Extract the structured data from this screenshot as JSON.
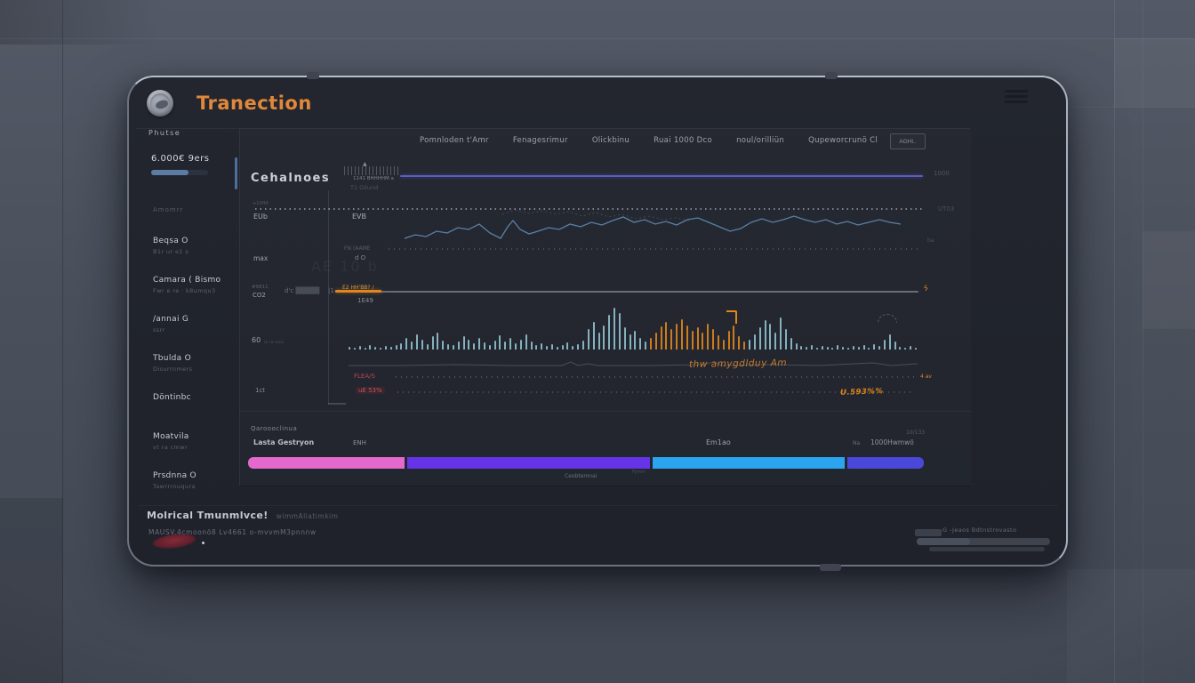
{
  "app": {
    "title": "Tranection",
    "brand_color": "#e0873a"
  },
  "sidebar": {
    "header": "Phutse",
    "balance": "6.000€ 9ers",
    "faint_item": "Amomrr",
    "items": [
      {
        "label": "Beqsa O",
        "sub": "B1r ur e1 s"
      },
      {
        "label": "Camara ( Bismo",
        "sub": "Fwr e re · k8umqu3"
      },
      {
        "label": "/annai G",
        "sub": "ssrr"
      },
      {
        "label": "Tbulda O",
        "sub": "Disurrnmers"
      },
      {
        "label": "Döntinbc",
        "sub": ""
      },
      {
        "label": "Moatvila",
        "sub": "vt ra cmwr"
      },
      {
        "label": "Prsdnna O",
        "sub": "Tawrrrnuqura"
      }
    ]
  },
  "nav": {
    "items": [
      "Pomnloden t'Amr",
      "Fenagesrimur",
      "Olickbinu",
      "Ruai 1000 Dco",
      "noul/orilliün",
      "Qupeworcrunö Cl"
    ],
    "action_label": "AGHl.."
  },
  "chart": {
    "title": "Cehalnoes",
    "watermark": "AE 10 b",
    "series1": {
      "tick_label": "1141 BHHHHM a",
      "marker": "▲",
      "sub_label": "T1 Gilund",
      "right_label": "1000"
    },
    "series2": {
      "left_top": "+13H4",
      "left": "EUb",
      "mid": "EVB",
      "right_label": "UT03"
    },
    "series3": {
      "left": "max",
      "mid_label": "FN (AAME",
      "mid_sub": "d O",
      "right_label": "ba"
    },
    "series4": {
      "left_top": "#9811",
      "left": "CO2",
      "hash": "d'c ▒▒▒▒▒",
      "sep": "|1",
      "orange_label": "E2 HH'BB? /",
      "below_label": "1E49",
      "right_icon": "ϟ"
    },
    "bars_section": {
      "left": "60",
      "left_sub": "m ra scsa",
      "bottom_left": "1ct",
      "annotation": "thw amygdlduy Am",
      "red_label_1": "FLEA/S",
      "orange_small": "4 av",
      "red_label_2": "uE 53%",
      "orange_value": "U.593%%"
    },
    "chart_data": {
      "type": "mixed",
      "flat_line": {
        "color": "#5a5ec2",
        "label_right": "1000"
      },
      "line_color": "#5e85ad",
      "line_points": [
        [
          10,
          33
        ],
        [
          22,
          29
        ],
        [
          34,
          31
        ],
        [
          46,
          25
        ],
        [
          58,
          27
        ],
        [
          70,
          21
        ],
        [
          82,
          23
        ],
        [
          94,
          17
        ],
        [
          106,
          27
        ],
        [
          118,
          33
        ],
        [
          126,
          20
        ],
        [
          132,
          13
        ],
        [
          140,
          23
        ],
        [
          150,
          28
        ],
        [
          160,
          25
        ],
        [
          172,
          21
        ],
        [
          184,
          23
        ],
        [
          196,
          17
        ],
        [
          208,
          20
        ],
        [
          220,
          15
        ],
        [
          232,
          18
        ],
        [
          244,
          13
        ],
        [
          256,
          9
        ],
        [
          268,
          15
        ],
        [
          280,
          12
        ],
        [
          292,
          17
        ],
        [
          304,
          14
        ],
        [
          316,
          18
        ],
        [
          328,
          12
        ],
        [
          340,
          10
        ],
        [
          352,
          15
        ],
        [
          364,
          20
        ],
        [
          376,
          25
        ],
        [
          388,
          22
        ],
        [
          400,
          15
        ],
        [
          412,
          11
        ],
        [
          424,
          15
        ],
        [
          436,
          12
        ],
        [
          448,
          8
        ],
        [
          460,
          12
        ],
        [
          472,
          15
        ],
        [
          484,
          12
        ],
        [
          496,
          17
        ],
        [
          508,
          14
        ],
        [
          520,
          18
        ],
        [
          532,
          15
        ],
        [
          544,
          12
        ],
        [
          556,
          15
        ],
        [
          568,
          17
        ]
      ],
      "upper_dashed_points": [
        [
          120,
          6
        ],
        [
          135,
          1
        ],
        [
          150,
          5
        ],
        [
          165,
          2
        ],
        [
          180,
          6
        ],
        [
          195,
          3
        ],
        [
          210,
          8
        ],
        [
          225,
          4
        ],
        [
          240,
          9
        ],
        [
          255,
          6
        ],
        [
          270,
          11
        ],
        [
          285,
          8
        ],
        [
          300,
          12
        ],
        [
          315,
          10
        ],
        [
          330,
          13
        ]
      ],
      "wave_points": [
        [
          0,
          12
        ],
        [
          60,
          12
        ],
        [
          120,
          11
        ],
        [
          180,
          12
        ],
        [
          240,
          12
        ],
        [
          250,
          8
        ],
        [
          258,
          12
        ],
        [
          270,
          10
        ],
        [
          280,
          12
        ],
        [
          340,
          12
        ],
        [
          400,
          11
        ],
        [
          410,
          8
        ],
        [
          420,
          12
        ],
        [
          470,
          11
        ],
        [
          530,
          12
        ],
        [
          590,
          9
        ],
        [
          610,
          12
        ],
        [
          640,
          10
        ]
      ],
      "bar_colors": {
        "teal": "#8fc2ce",
        "orange": "#e0861c"
      },
      "bars": [
        [
          3,
          0
        ],
        [
          2,
          0
        ],
        [
          4,
          0
        ],
        [
          2,
          0
        ],
        [
          5,
          0
        ],
        [
          3,
          0
        ],
        [
          2,
          0
        ],
        [
          4,
          0
        ],
        [
          3,
          0
        ],
        [
          5,
          0
        ],
        [
          7,
          0
        ],
        [
          13,
          0
        ],
        [
          9,
          0
        ],
        [
          17,
          0
        ],
        [
          11,
          0
        ],
        [
          6,
          0
        ],
        [
          15,
          0
        ],
        [
          19,
          0
        ],
        [
          10,
          0
        ],
        [
          6,
          0
        ],
        [
          5,
          0
        ],
        [
          9,
          0
        ],
        [
          15,
          0
        ],
        [
          11,
          0
        ],
        [
          7,
          0
        ],
        [
          13,
          0
        ],
        [
          8,
          0
        ],
        [
          5,
          0
        ],
        [
          10,
          0
        ],
        [
          16,
          0
        ],
        [
          9,
          0
        ],
        [
          13,
          0
        ],
        [
          7,
          0
        ],
        [
          11,
          0
        ],
        [
          17,
          0
        ],
        [
          9,
          0
        ],
        [
          5,
          0
        ],
        [
          7,
          0
        ],
        [
          4,
          0
        ],
        [
          6,
          0
        ],
        [
          3,
          0
        ],
        [
          5,
          0
        ],
        [
          8,
          0
        ],
        [
          4,
          0
        ],
        [
          6,
          0
        ],
        [
          10,
          0
        ],
        [
          23,
          0
        ],
        [
          31,
          0
        ],
        [
          19,
          0
        ],
        [
          27,
          0
        ],
        [
          39,
          0
        ],
        [
          47,
          0
        ],
        [
          41,
          0
        ],
        [
          25,
          0
        ],
        [
          17,
          0
        ],
        [
          21,
          0
        ],
        [
          13,
          0
        ],
        [
          9,
          0
        ],
        [
          13,
          1
        ],
        [
          19,
          1
        ],
        [
          26,
          1
        ],
        [
          31,
          1
        ],
        [
          23,
          1
        ],
        [
          29,
          1
        ],
        [
          34,
          1
        ],
        [
          27,
          1
        ],
        [
          21,
          1
        ],
        [
          25,
          1
        ],
        [
          19,
          1
        ],
        [
          29,
          1
        ],
        [
          23,
          1
        ],
        [
          16,
          1
        ],
        [
          11,
          1
        ],
        [
          21,
          1
        ],
        [
          27,
          1
        ],
        [
          15,
          1
        ],
        [
          9,
          1
        ],
        [
          11,
          0
        ],
        [
          17,
          0
        ],
        [
          25,
          0
        ],
        [
          33,
          0
        ],
        [
          29,
          0
        ],
        [
          19,
          0
        ],
        [
          36,
          0
        ],
        [
          23,
          0
        ],
        [
          13,
          0
        ],
        [
          7,
          0
        ],
        [
          4,
          0
        ],
        [
          3,
          0
        ],
        [
          5,
          0
        ],
        [
          2,
          0
        ],
        [
          4,
          0
        ],
        [
          3,
          0
        ],
        [
          2,
          0
        ],
        [
          5,
          0
        ],
        [
          3,
          0
        ],
        [
          2,
          0
        ],
        [
          4,
          0
        ],
        [
          3,
          0
        ],
        [
          5,
          0
        ],
        [
          2,
          0
        ],
        [
          6,
          0
        ],
        [
          4,
          0
        ],
        [
          11,
          0
        ],
        [
          17,
          0
        ],
        [
          9,
          0
        ],
        [
          3,
          0
        ],
        [
          2,
          0
        ],
        [
          4,
          0
        ],
        [
          2,
          0
        ]
      ]
    }
  },
  "allocation": {
    "header": "Qaroooclinua",
    "labels": {
      "left": "Lasta Gestryon",
      "left2": "ENH",
      "mid": "Em1ao",
      "small": "Na",
      "right": "1000Hwmwö",
      "above_right": "10/133"
    },
    "below_center": "Ceobtemnai",
    "below_faint": "Fymm",
    "segments": [
      {
        "color": "#e569cd",
        "pct": 23.4
      },
      {
        "color": "#6634e6",
        "pct": 36.3
      },
      {
        "color": "#2ba5f0",
        "pct": 28.8
      },
      {
        "color": "#4a48da",
        "pct": 11.4
      }
    ]
  },
  "footer": {
    "bold": "Molrical Tmunmlvce!",
    "after": "wimmAliatimkim",
    "line2": "MAUSV.4cmoonö8 Lv4661 o-mvvmM3pnnnw",
    "right_text": "G -Jeaos Bdtnstrovasto"
  }
}
